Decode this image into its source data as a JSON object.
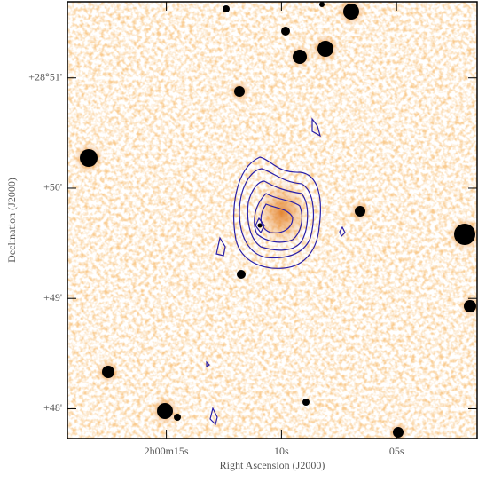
{
  "chart_data": {
    "type": "image",
    "x_label": "Right Ascension (J2000)",
    "y_label": "Declination (J2000)",
    "xlim": [
      19.3,
      1.5
    ],
    "ylim": [
      47.73,
      51.69
    ],
    "xticks": [
      {
        "value": 15,
        "label": "2h00m15s"
      },
      {
        "value": 10,
        "label": "10s"
      },
      {
        "value": 5,
        "label": "05s"
      }
    ],
    "yticks": [
      {
        "value": 51,
        "label": "+28°51'"
      },
      {
        "value": 50,
        "label": "+50'"
      },
      {
        "value": 49,
        "label": "+49'"
      },
      {
        "value": 48,
        "label": "+48'"
      }
    ]
  }
}
